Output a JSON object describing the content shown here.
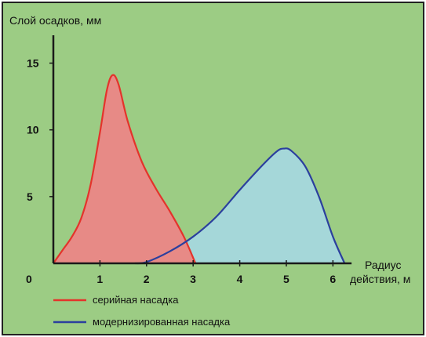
{
  "colors": {
    "background": "#9CCC84",
    "frame": "#222222",
    "axis": "#1a1a1a",
    "series_1_line": "#E4332B",
    "series_1_fill": "#E78A86",
    "series_2_line": "#2B3F9E",
    "series_2_fill": "#A5D7D9"
  },
  "chart_data": {
    "type": "area",
    "title": "",
    "xlabel": "Радиус действия, м",
    "ylabel": "Слой осадков, мм",
    "xlim": [
      0,
      6.6
    ],
    "ylim": [
      0,
      16.5
    ],
    "x_ticks": [
      0,
      1,
      2,
      3,
      4,
      5,
      6
    ],
    "y_ticks": [
      5,
      10,
      15
    ],
    "grid": false,
    "legend_placement": "bottom-left",
    "series": [
      {
        "name": "серийная насадка",
        "color": "#E4332B",
        "fill": "#E78A86",
        "points": [
          [
            0.0,
            0.0
          ],
          [
            0.2,
            1.0
          ],
          [
            0.4,
            2.0
          ],
          [
            0.6,
            3.4
          ],
          [
            0.8,
            5.9
          ],
          [
            1.0,
            9.8
          ],
          [
            1.15,
            13.0
          ],
          [
            1.27,
            14.1
          ],
          [
            1.4,
            13.4
          ],
          [
            1.6,
            10.6
          ],
          [
            1.9,
            7.6
          ],
          [
            2.2,
            5.6
          ],
          [
            2.5,
            3.9
          ],
          [
            2.8,
            2.0
          ],
          [
            3.05,
            0.0
          ]
        ]
      },
      {
        "name": "модернизированная насадка",
        "color": "#2B3F9E",
        "fill": "#A5D7D9",
        "points": [
          [
            1.75,
            0.0
          ],
          [
            2.0,
            0.1
          ],
          [
            2.5,
            0.9
          ],
          [
            3.0,
            2.0
          ],
          [
            3.5,
            3.5
          ],
          [
            4.0,
            5.5
          ],
          [
            4.5,
            7.4
          ],
          [
            4.8,
            8.4
          ],
          [
            4.95,
            8.6
          ],
          [
            5.1,
            8.45
          ],
          [
            5.4,
            7.3
          ],
          [
            5.7,
            5.0
          ],
          [
            6.0,
            2.0
          ],
          [
            6.25,
            0.0
          ]
        ]
      }
    ]
  }
}
